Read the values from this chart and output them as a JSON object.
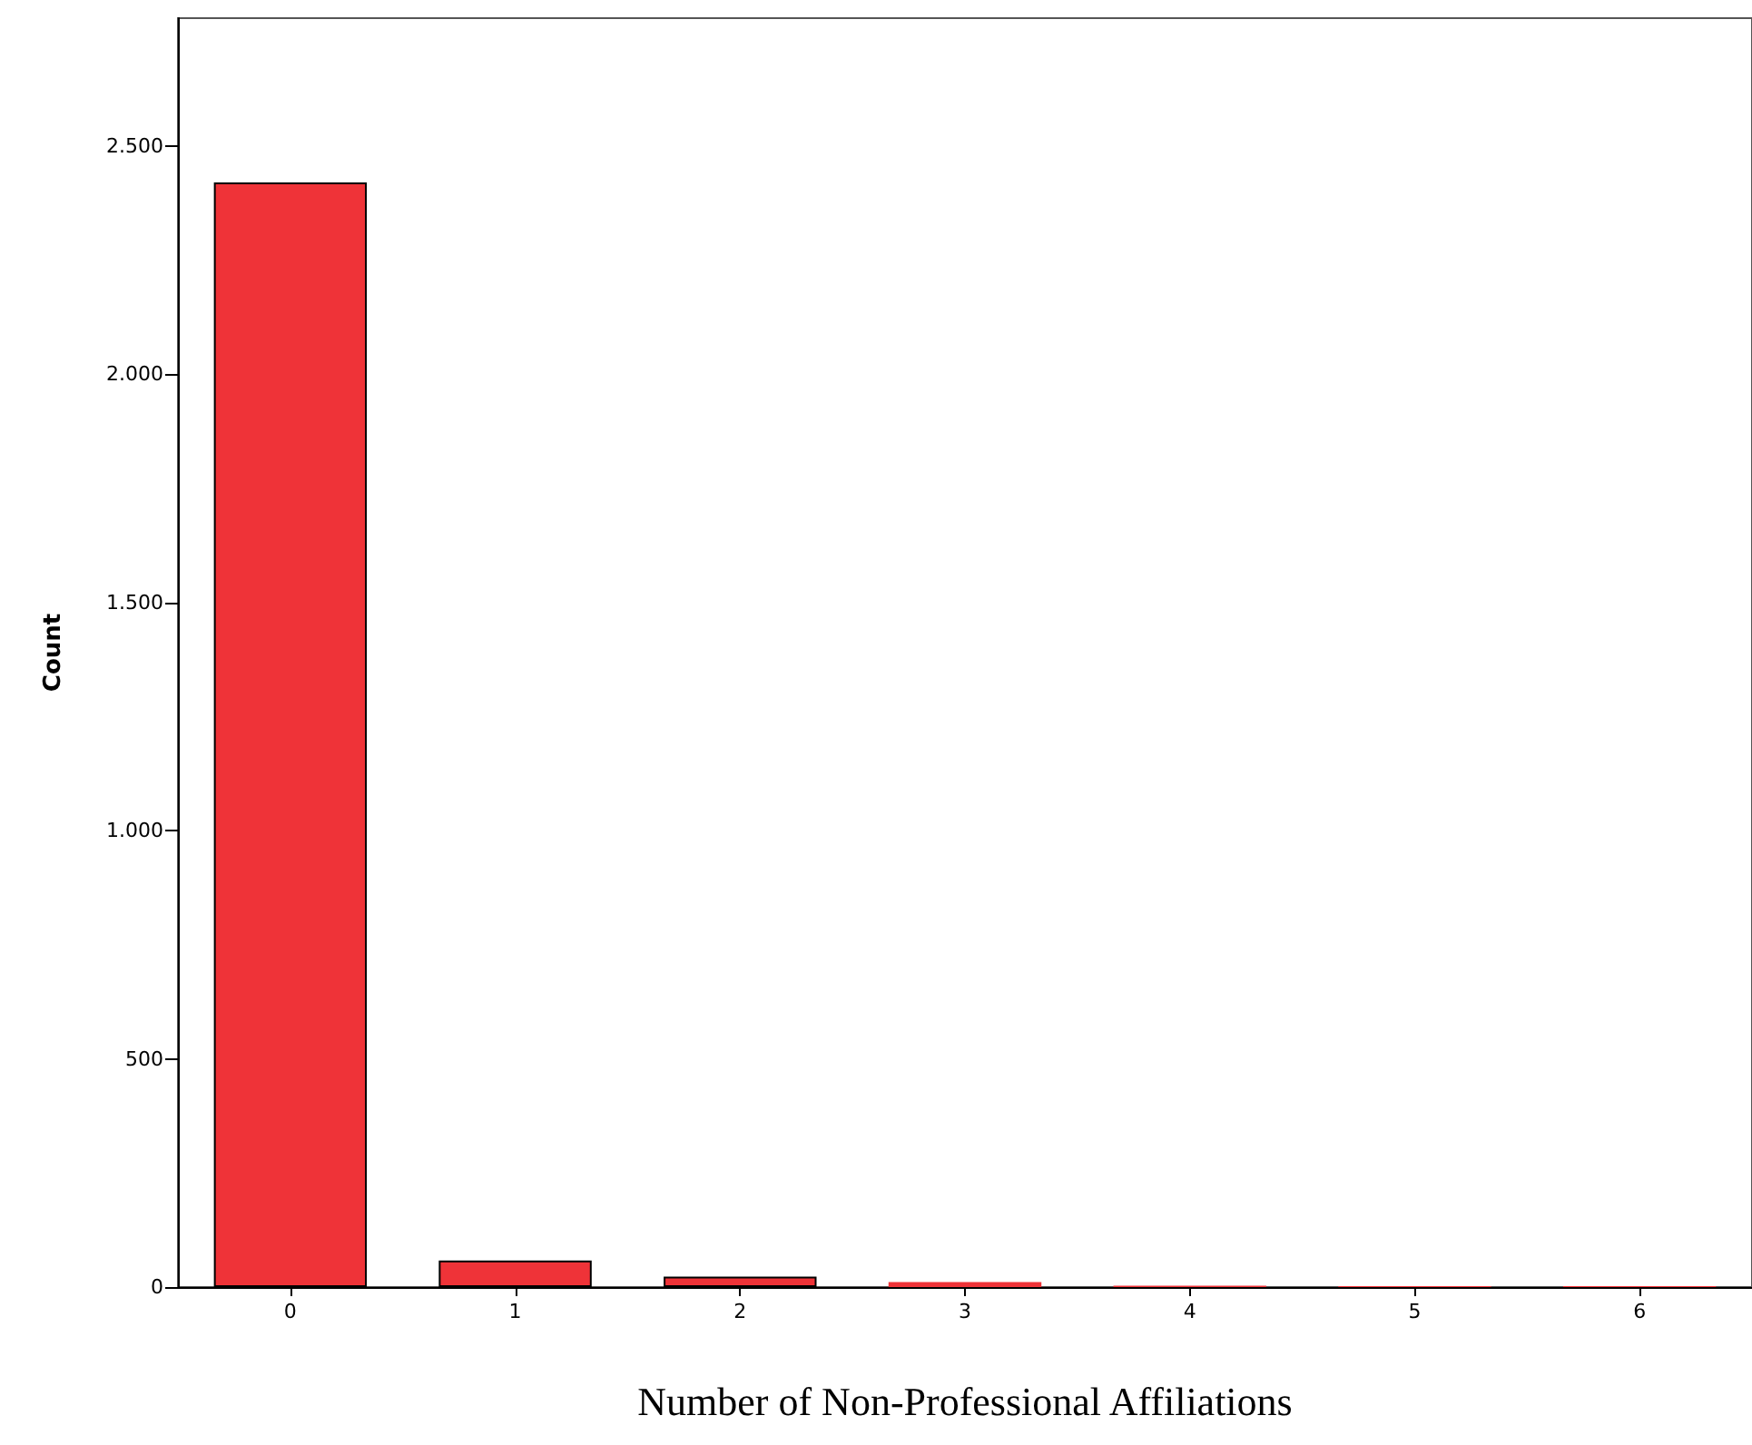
{
  "chart_data": {
    "type": "bar",
    "xlabel": "Number of Non-Professional Affiliations",
    "ylabel": "Count",
    "categories": [
      "0",
      "1",
      "2",
      "3",
      "4",
      "5",
      "6"
    ],
    "values": [
      2420,
      58,
      23,
      11,
      3,
      2,
      2
    ],
    "color": "#ef3338",
    "ylim": [
      0,
      2780
    ],
    "yticks": [
      0,
      500,
      {
        "value": 1000,
        "label": "1.000"
      },
      {
        "value": 1500,
        "label": "1.500"
      },
      {
        "value": 2000,
        "label": "2.000"
      },
      {
        "value": 2500,
        "label": "2.500"
      }
    ],
    "grid": false
  }
}
